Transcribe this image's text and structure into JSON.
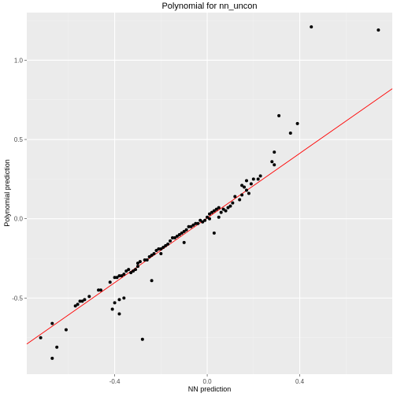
{
  "chart_data": {
    "type": "scatter",
    "title": "Polynomial for nn_uncon",
    "xlabel": "NN prediction",
    "ylabel": "Polynomial prediction",
    "xlim": [
      -0.78,
      0.8
    ],
    "ylim": [
      -0.98,
      1.3
    ],
    "x_ticks": [
      -0.4,
      0.0,
      0.4
    ],
    "x_tick_labels": [
      "-0.4",
      "0.0",
      "0.4"
    ],
    "y_ticks": [
      -0.5,
      0.0,
      0.5,
      1.0
    ],
    "y_tick_labels": [
      "-0.5",
      "0.0",
      "0.5",
      "1.0"
    ],
    "grid": true,
    "colors": {
      "panel_bg": "#ebebeb",
      "grid_major": "#ffffff",
      "grid_minor": "#f2f2f2",
      "points": "#000000",
      "fit_line": "#ff0000"
    },
    "fit_line": {
      "x": [
        -0.78,
        0.8
      ],
      "y": [
        -0.79,
        0.82
      ]
    },
    "points": [
      [
        -0.72,
        -0.75
      ],
      [
        -0.67,
        -0.66
      ],
      [
        -0.67,
        -0.88
      ],
      [
        -0.65,
        -0.81
      ],
      [
        -0.61,
        -0.7
      ],
      [
        -0.57,
        -0.55
      ],
      [
        -0.56,
        -0.54
      ],
      [
        -0.55,
        -0.52
      ],
      [
        -0.54,
        -0.52
      ],
      [
        -0.53,
        -0.51
      ],
      [
        -0.51,
        -0.49
      ],
      [
        -0.47,
        -0.45
      ],
      [
        -0.46,
        -0.45
      ],
      [
        -0.42,
        -0.4
      ],
      [
        -0.41,
        -0.57
      ],
      [
        -0.4,
        -0.53
      ],
      [
        -0.4,
        -0.37
      ],
      [
        -0.39,
        -0.37
      ],
      [
        -0.38,
        -0.36
      ],
      [
        -0.38,
        -0.6
      ],
      [
        -0.38,
        -0.51
      ],
      [
        -0.37,
        -0.36
      ],
      [
        -0.36,
        -0.5
      ],
      [
        -0.36,
        -0.35
      ],
      [
        -0.35,
        -0.33
      ],
      [
        -0.34,
        -0.32
      ],
      [
        -0.33,
        -0.34
      ],
      [
        -0.32,
        -0.33
      ],
      [
        -0.31,
        -0.32
      ],
      [
        -0.3,
        -0.3
      ],
      [
        -0.3,
        -0.28
      ],
      [
        -0.29,
        -0.27
      ],
      [
        -0.28,
        -0.76
      ],
      [
        -0.27,
        -0.26
      ],
      [
        -0.26,
        -0.26
      ],
      [
        -0.25,
        -0.24
      ],
      [
        -0.24,
        -0.23
      ],
      [
        -0.24,
        -0.39
      ],
      [
        -0.23,
        -0.22
      ],
      [
        -0.22,
        -0.2
      ],
      [
        -0.21,
        -0.19
      ],
      [
        -0.2,
        -0.19
      ],
      [
        -0.2,
        -0.22
      ],
      [
        -0.19,
        -0.18
      ],
      [
        -0.18,
        -0.17
      ],
      [
        -0.17,
        -0.16
      ],
      [
        -0.16,
        -0.14
      ],
      [
        -0.15,
        -0.12
      ],
      [
        -0.14,
        -0.12
      ],
      [
        -0.13,
        -0.11
      ],
      [
        -0.12,
        -0.1
      ],
      [
        -0.11,
        -0.09
      ],
      [
        -0.1,
        -0.08
      ],
      [
        -0.1,
        -0.15
      ],
      [
        -0.09,
        -0.07
      ],
      [
        -0.08,
        -0.05
      ],
      [
        -0.07,
        -0.05
      ],
      [
        -0.06,
        -0.04
      ],
      [
        -0.05,
        -0.03
      ],
      [
        -0.04,
        -0.03
      ],
      [
        -0.03,
        -0.01
      ],
      [
        -0.02,
        -0.02
      ],
      [
        -0.01,
        -0.01
      ],
      [
        0.0,
        0.01
      ],
      [
        0.01,
        0.0
      ],
      [
        0.01,
        0.03
      ],
      [
        0.02,
        0.04
      ],
      [
        0.03,
        0.05
      ],
      [
        0.04,
        0.06
      ],
      [
        0.05,
        0.07
      ],
      [
        0.03,
        -0.09
      ],
      [
        0.05,
        0.01
      ],
      [
        0.06,
        0.04
      ],
      [
        0.07,
        0.06
      ],
      [
        0.08,
        0.05
      ],
      [
        0.09,
        0.07
      ],
      [
        0.1,
        0.08
      ],
      [
        0.11,
        0.1
      ],
      [
        0.12,
        0.14
      ],
      [
        0.14,
        0.12
      ],
      [
        0.15,
        0.15
      ],
      [
        0.15,
        0.21
      ],
      [
        0.16,
        0.2
      ],
      [
        0.17,
        0.24
      ],
      [
        0.17,
        0.18
      ],
      [
        0.18,
        0.16
      ],
      [
        0.19,
        0.22
      ],
      [
        0.2,
        0.25
      ],
      [
        0.22,
        0.25
      ],
      [
        0.23,
        0.27
      ],
      [
        0.28,
        0.36
      ],
      [
        0.29,
        0.42
      ],
      [
        0.29,
        0.34
      ],
      [
        0.31,
        0.65
      ],
      [
        0.36,
        0.54
      ],
      [
        0.39,
        0.6
      ],
      [
        0.45,
        1.21
      ],
      [
        0.74,
        1.19
      ]
    ]
  }
}
